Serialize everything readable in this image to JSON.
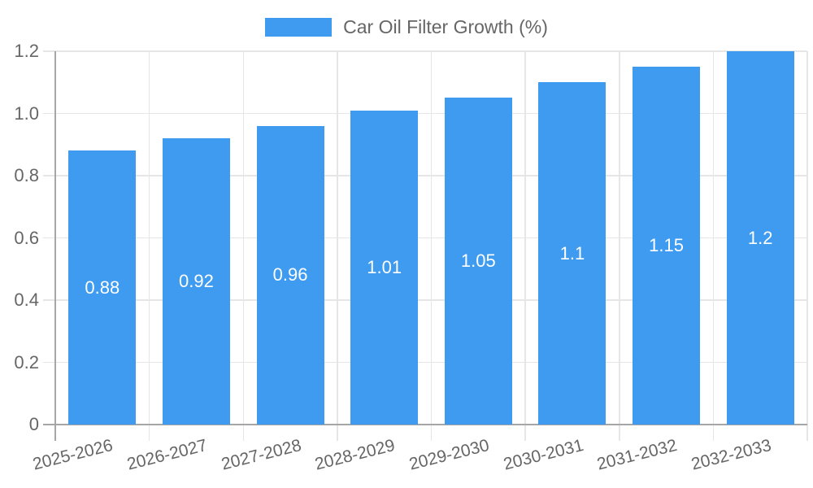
{
  "chart_data": {
    "type": "bar",
    "title": "Car Oil Filter Growth (%)",
    "legend_position": "top",
    "grid": true,
    "categories": [
      "2025-2026",
      "2026-2027",
      "2027-2028",
      "2028-2029",
      "2029-2030",
      "2030-2031",
      "2031-2032",
      "2032-2033"
    ],
    "values": [
      0.88,
      0.92,
      0.96,
      1.01,
      1.05,
      1.1,
      1.15,
      1.2
    ],
    "value_labels": [
      "0.88",
      "0.92",
      "0.96",
      "1.01",
      "1.05",
      "1.1",
      "1.15",
      "1.2"
    ],
    "series": [
      {
        "name": "Car Oil Filter Growth (%)",
        "values": [
          0.88,
          0.92,
          0.96,
          1.01,
          1.05,
          1.1,
          1.15,
          1.2
        ]
      }
    ],
    "xlabel": "",
    "ylabel": "",
    "ylim": [
      0,
      1.2
    ],
    "yticks": [
      {
        "value": 0,
        "label": "0"
      },
      {
        "value": 0.2,
        "label": "0.2"
      },
      {
        "value": 0.4,
        "label": "0.4"
      },
      {
        "value": 0.6,
        "label": "0.6"
      },
      {
        "value": 0.8,
        "label": "0.8"
      },
      {
        "value": 1.0,
        "label": "1.0"
      },
      {
        "value": 1.2,
        "label": "1.2"
      }
    ],
    "colors": {
      "bar": "#3e9bf0",
      "grid_line": "#e6e6e6",
      "axis_line": "#a6a6a6",
      "tick_label": "#666666",
      "value_label": "#ffffff",
      "legend_label": "#666666"
    }
  }
}
